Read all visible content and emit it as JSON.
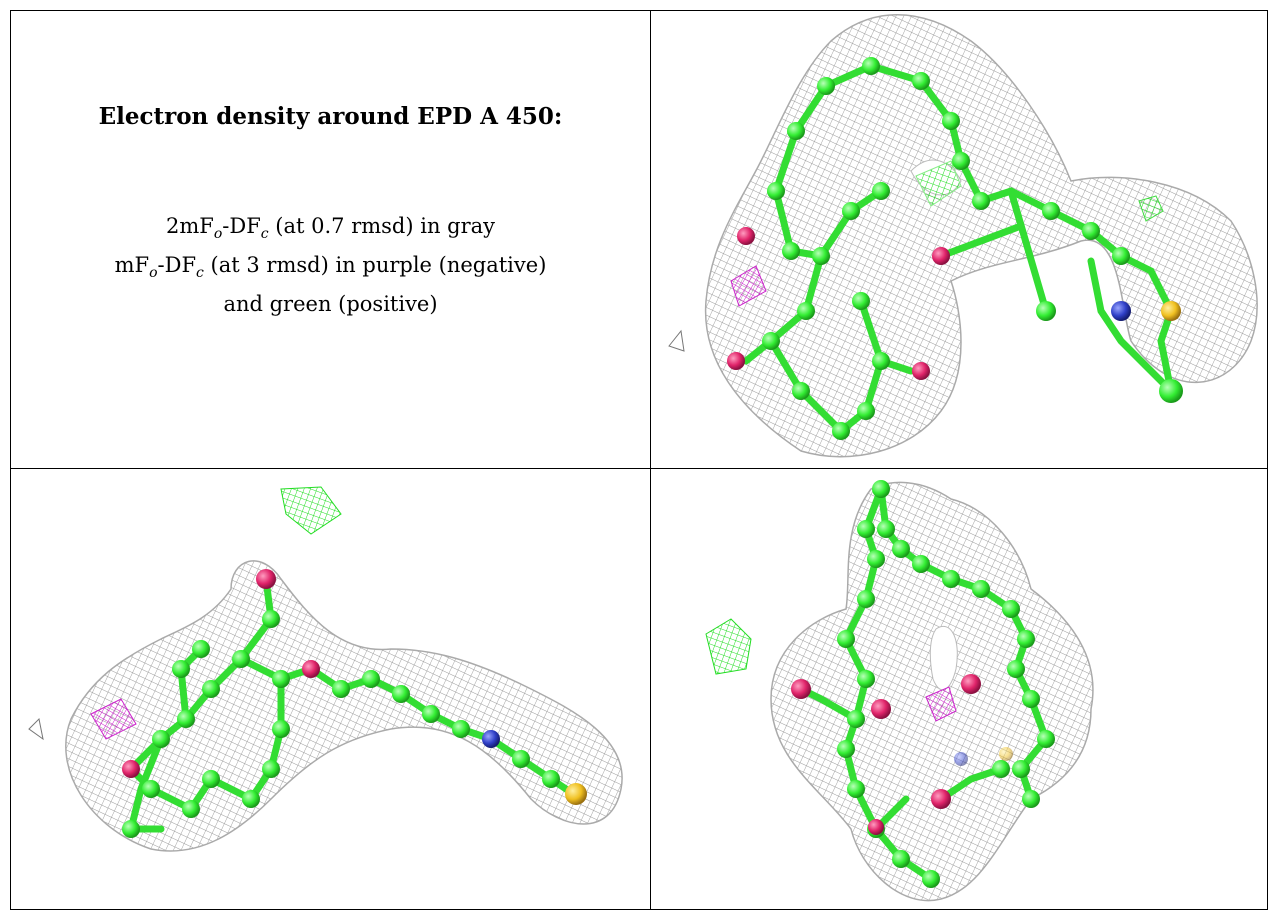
{
  "table": {
    "title": "Electron density around EPD A 450:",
    "legend": {
      "line1_prefix": "2mF",
      "line1_sub_o": "o",
      "line1_mid": "-DF",
      "line1_sub_c": "c",
      "line1_suffix": " (at 0.7 rmsd) in gray",
      "line2_prefix": "mF",
      "line2_sub_o": "o",
      "line2_mid": "-DF",
      "line2_sub_c": "c",
      "line2_suffix": " (at 3 rmsd) in purple (negative)",
      "line3": "and green (positive)"
    }
  },
  "colors": {
    "mesh_gray": "#b4b4b4",
    "carbon_green": "#33ee33",
    "oxygen_red": "#e0246a",
    "nitrogen_blue": "#3040c8",
    "sulfur_yellow": "#f0c020",
    "positive_density": "#22dd22",
    "negative_density": "#cc22cc"
  }
}
